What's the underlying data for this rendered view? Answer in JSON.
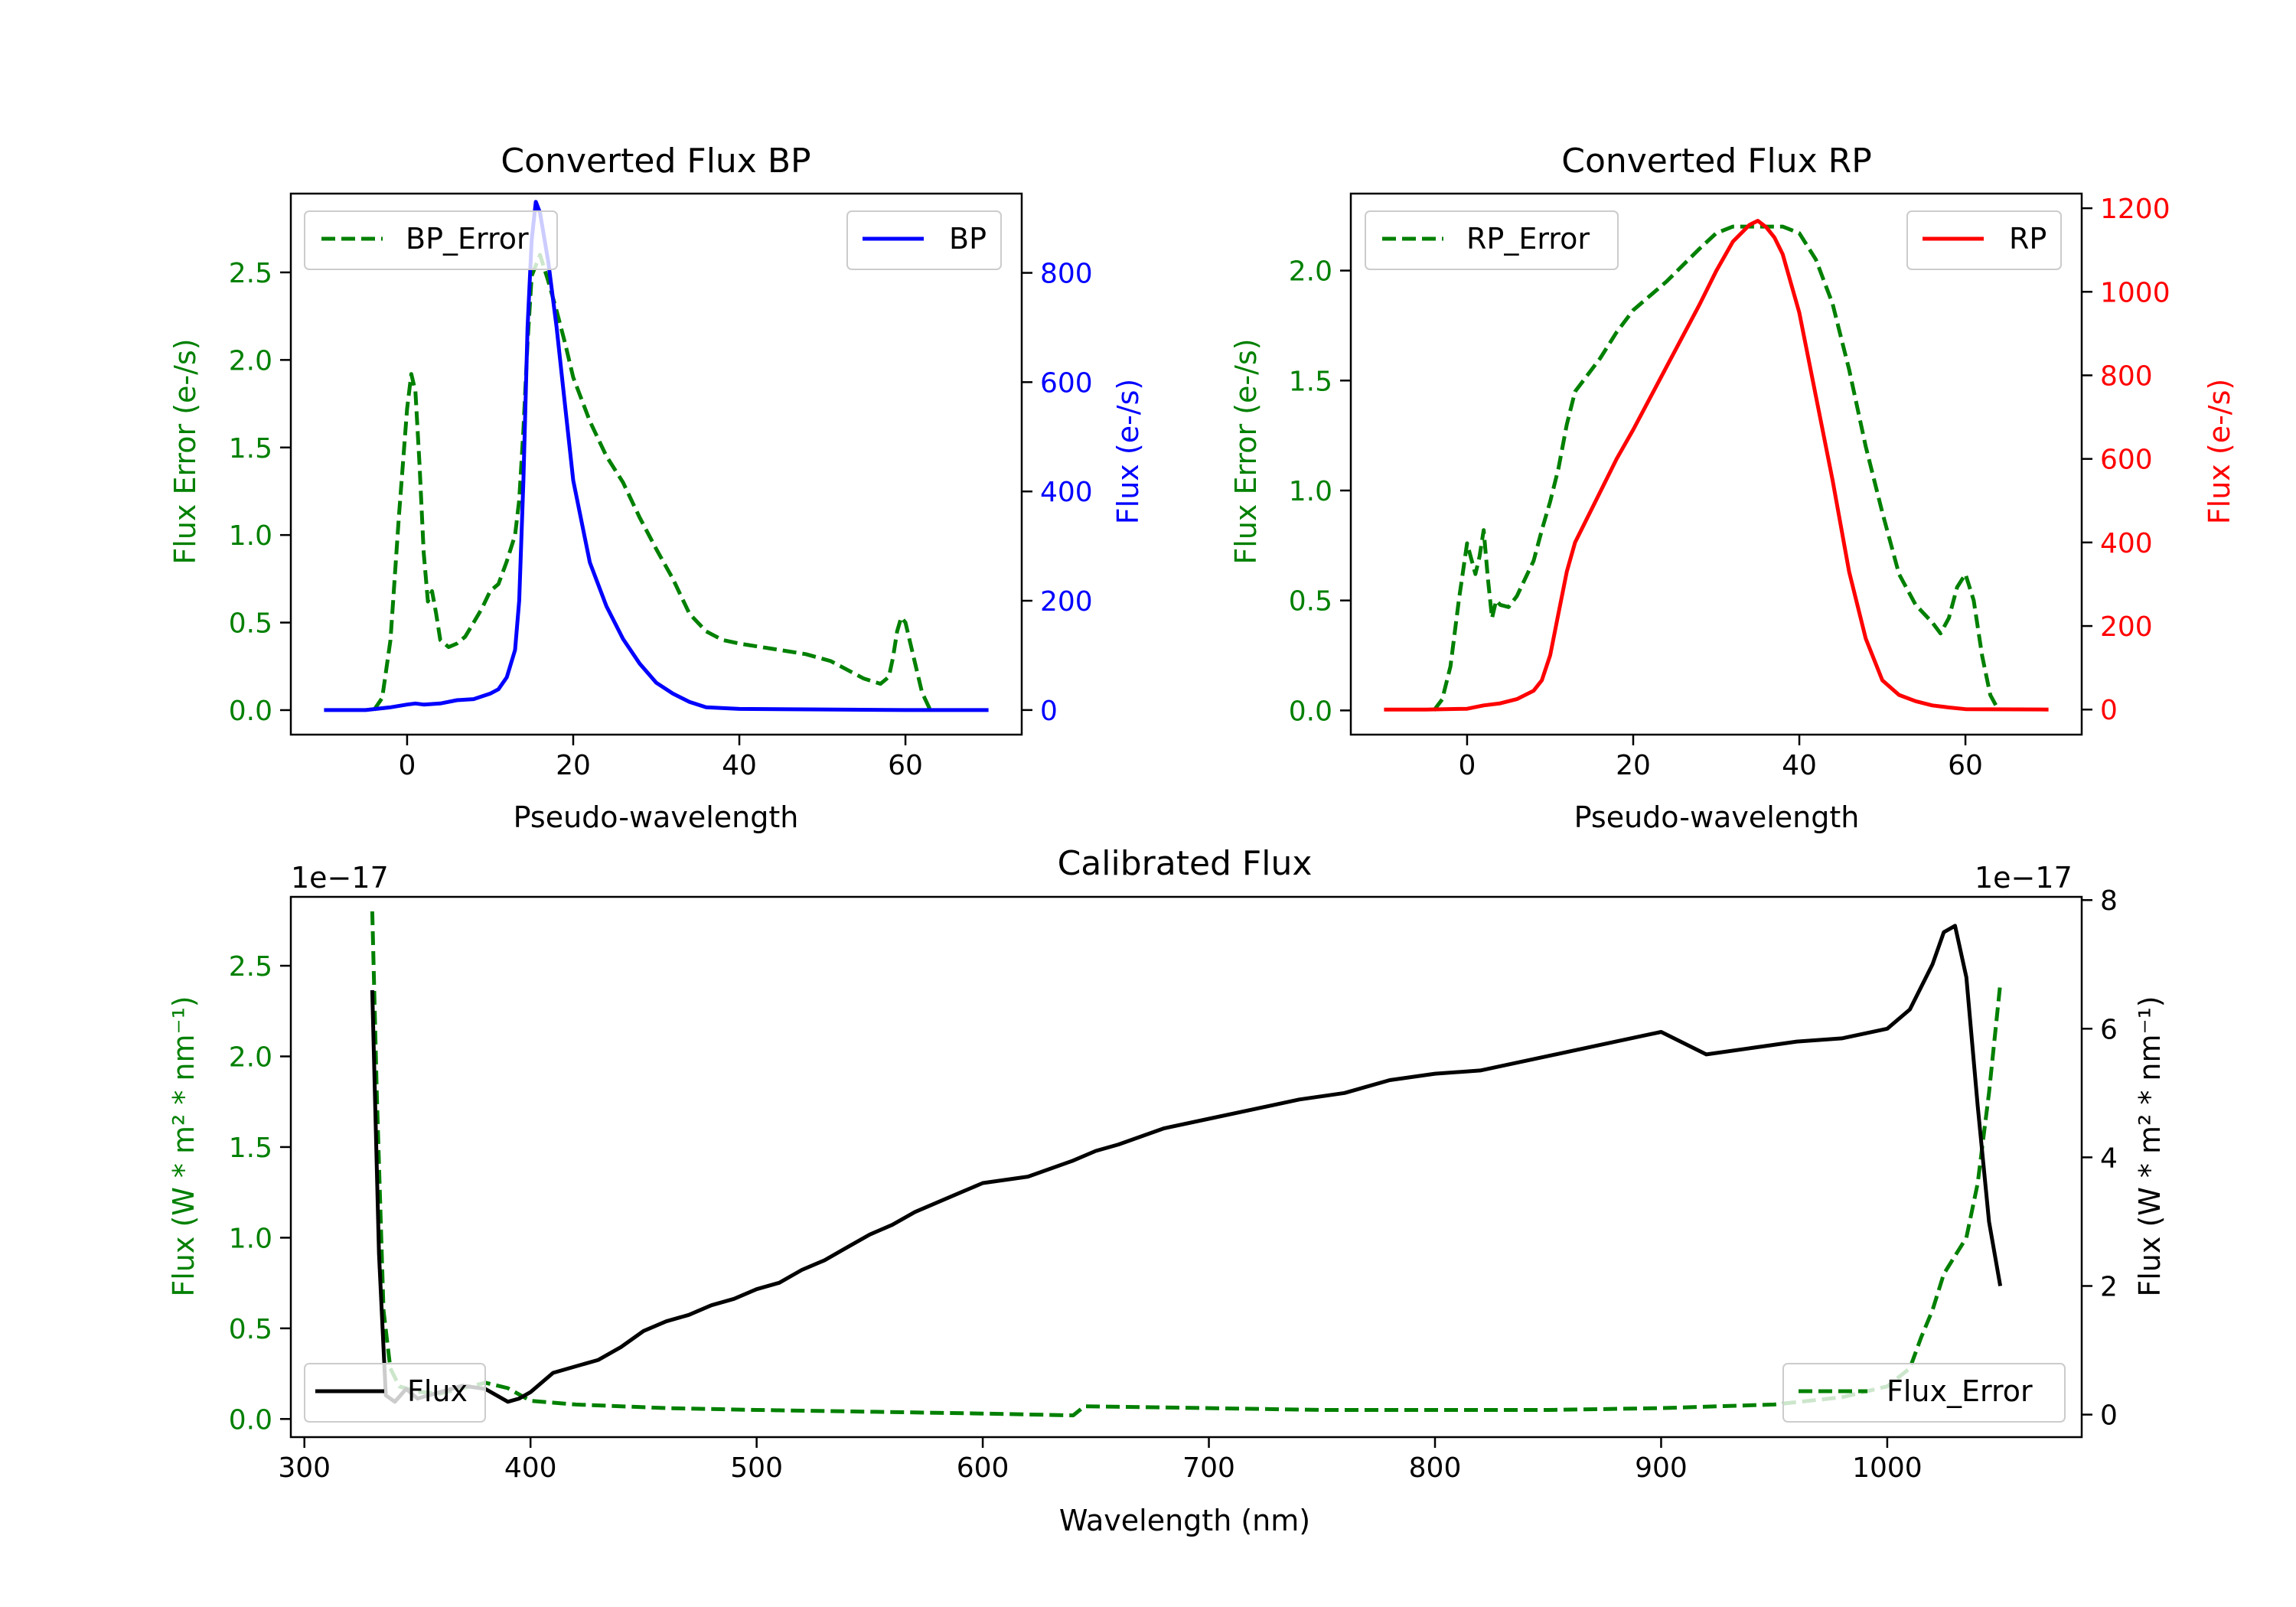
{
  "colors": {
    "error": "#008000",
    "bp": "#0000ff",
    "rp": "#ff0000",
    "flux": "#000000"
  },
  "chart_data": [
    {
      "id": "bp",
      "type": "line",
      "title": "Converted Flux BP",
      "xlabel": "Pseudo-wavelength",
      "ylabel_left": "Flux Error (e-/s)",
      "ylabel_right": "Flux (e-/s)",
      "xlim": [
        -14,
        74
      ],
      "ylim_left": [
        -0.14,
        2.95
      ],
      "ylim_right": [
        -45,
        945
      ],
      "xticks": [
        0,
        20,
        40,
        60
      ],
      "yticks_left": [
        0.0,
        0.5,
        1.0,
        1.5,
        2.0,
        2.5
      ],
      "yticks_right": [
        0,
        200,
        400,
        600,
        800
      ],
      "legend_left": "BP_Error",
      "legend_right": "BP",
      "error_series": {
        "name": "BP_Error",
        "x": [
          -4,
          -3,
          -2,
          -1,
          0,
          0.5,
          1,
          1.5,
          2,
          2.5,
          3,
          3.5,
          4,
          5,
          6,
          7,
          8,
          9,
          10,
          11,
          12,
          13,
          13.5,
          14,
          14.5,
          15,
          16,
          17,
          18,
          19,
          20,
          22,
          24,
          26,
          28,
          30,
          32,
          34,
          36,
          38,
          40,
          44,
          48,
          51,
          53,
          55,
          57,
          58,
          58.5,
          59,
          59.5,
          60,
          61,
          62,
          63
        ],
        "y": [
          0.0,
          0.07,
          0.4,
          1.1,
          1.72,
          1.92,
          1.82,
          1.4,
          0.9,
          0.62,
          0.68,
          0.55,
          0.4,
          0.36,
          0.38,
          0.42,
          0.5,
          0.58,
          0.68,
          0.72,
          0.85,
          1.0,
          1.2,
          1.6,
          2.1,
          2.48,
          2.6,
          2.45,
          2.28,
          2.1,
          1.9,
          1.65,
          1.45,
          1.3,
          1.1,
          0.92,
          0.75,
          0.55,
          0.45,
          0.4,
          0.38,
          0.35,
          0.32,
          0.28,
          0.23,
          0.18,
          0.15,
          0.19,
          0.3,
          0.45,
          0.53,
          0.5,
          0.3,
          0.1,
          0.0
        ]
      },
      "flux_series": {
        "name": "BP",
        "x": [
          -10,
          -5,
          -2,
          0,
          1,
          2,
          4,
          6,
          8,
          10,
          11,
          12,
          13,
          13.5,
          14,
          14.5,
          15,
          15.5,
          16,
          17,
          18,
          19,
          20,
          22,
          24,
          26,
          28,
          30,
          32,
          34,
          36,
          40,
          50,
          60,
          70
        ],
        "y": [
          0,
          0,
          5,
          10,
          12,
          10,
          12,
          18,
          20,
          30,
          38,
          60,
          110,
          200,
          420,
          700,
          860,
          930,
          910,
          820,
          700,
          560,
          420,
          270,
          190,
          130,
          85,
          50,
          30,
          15,
          5,
          2,
          1,
          0,
          0
        ]
      }
    },
    {
      "id": "rp",
      "type": "line",
      "title": "Converted Flux RP",
      "xlabel": "Pseudo-wavelength",
      "ylabel_left": "Flux Error (e-/s)",
      "ylabel_right": "Flux (e-/s)",
      "xlim": [
        -14,
        74
      ],
      "ylim_left": [
        -0.11,
        2.35
      ],
      "ylim_right": [
        -60,
        1235
      ],
      "xticks": [
        0,
        20,
        40,
        60
      ],
      "yticks_left": [
        0.0,
        0.5,
        1.0,
        1.5,
        2.0
      ],
      "yticks_right": [
        0,
        200,
        400,
        600,
        800,
        1000,
        1200
      ],
      "legend_left": "RP_Error",
      "legend_right": "RP",
      "error_series": {
        "name": "RP_Error",
        "x": [
          -4,
          -3,
          -2,
          -1,
          0,
          1,
          1.5,
          2,
          2.5,
          3,
          3.5,
          4,
          5,
          6,
          7,
          8,
          9,
          10,
          11,
          12,
          13,
          14,
          16,
          18,
          20,
          24,
          28,
          30,
          32,
          34,
          36,
          38,
          40,
          42,
          44,
          46,
          48,
          50,
          52,
          54,
          56,
          57,
          58,
          59,
          60,
          61,
          62,
          63,
          64
        ],
        "y": [
          0.0,
          0.05,
          0.2,
          0.5,
          0.76,
          0.62,
          0.7,
          0.82,
          0.6,
          0.42,
          0.5,
          0.48,
          0.47,
          0.52,
          0.6,
          0.68,
          0.82,
          0.95,
          1.1,
          1.3,
          1.45,
          1.5,
          1.6,
          1.72,
          1.82,
          1.95,
          2.1,
          2.17,
          2.2,
          2.2,
          2.2,
          2.2,
          2.17,
          2.05,
          1.85,
          1.55,
          1.2,
          0.9,
          0.62,
          0.48,
          0.4,
          0.35,
          0.42,
          0.56,
          0.62,
          0.5,
          0.25,
          0.07,
          0.0
        ]
      },
      "flux_series": {
        "name": "RP",
        "x": [
          -10,
          -5,
          0,
          2,
          4,
          6,
          8,
          9,
          10,
          11,
          12,
          13,
          14,
          16,
          18,
          20,
          24,
          28,
          30,
          32,
          34,
          35,
          36,
          37,
          38,
          40,
          42,
          44,
          46,
          48,
          50,
          52,
          54,
          56,
          58,
          60,
          70
        ],
        "y": [
          0,
          0,
          2,
          10,
          15,
          25,
          45,
          70,
          130,
          230,
          330,
          400,
          440,
          520,
          600,
          670,
          820,
          970,
          1050,
          1120,
          1160,
          1170,
          1155,
          1130,
          1090,
          950,
          750,
          550,
          330,
          170,
          70,
          35,
          20,
          10,
          5,
          1,
          0
        ]
      }
    },
    {
      "id": "cal",
      "type": "line",
      "title": "Calibrated Flux",
      "xlabel": "Wavelength (nm)",
      "ylabel_left": "Flux (W * m² * nm⁻¹)",
      "ylabel_right": "Flux (W * m² * nm⁻¹)",
      "offset_left": "1e−17",
      "offset_right": "1e−17",
      "xlim": [
        294,
        1086
      ],
      "ylim_left": [
        -0.1,
        2.88
      ],
      "ylim_right": [
        -0.35,
        8.05
      ],
      "xticks": [
        300,
        400,
        500,
        600,
        700,
        800,
        900,
        1000
      ],
      "yticks_left": [
        0.0,
        0.5,
        1.0,
        1.5,
        2.0,
        2.5
      ],
      "yticks_right": [
        0,
        2,
        4,
        6,
        8
      ],
      "legend_left": "Flux",
      "legend_right": "Flux_Error",
      "error_series": {
        "name": "Flux_Error",
        "x": [
          330,
          332,
          335,
          338,
          342,
          350,
          360,
          370,
          380,
          390,
          400,
          420,
          440,
          460,
          500,
          550,
          600,
          640,
          645,
          700,
          750,
          800,
          850,
          900,
          950,
          980,
          1000,
          1010,
          1015,
          1020,
          1025,
          1030,
          1035,
          1040,
          1045,
          1050
        ],
        "y": [
          2.8,
          1.8,
          0.6,
          0.28,
          0.18,
          0.15,
          0.14,
          0.17,
          0.2,
          0.17,
          0.1,
          0.08,
          0.07,
          0.06,
          0.05,
          0.04,
          0.03,
          0.02,
          0.07,
          0.06,
          0.05,
          0.05,
          0.05,
          0.06,
          0.08,
          0.12,
          0.18,
          0.28,
          0.45,
          0.6,
          0.8,
          0.9,
          1.0,
          1.3,
          1.8,
          2.4
        ]
      },
      "flux_series": {
        "name": "Flux",
        "x": [
          330,
          333,
          336,
          340,
          345,
          350,
          360,
          370,
          380,
          385,
          390,
          395,
          400,
          410,
          420,
          430,
          440,
          450,
          460,
          470,
          480,
          490,
          500,
          510,
          520,
          530,
          540,
          550,
          560,
          570,
          580,
          590,
          600,
          620,
          640,
          650,
          660,
          680,
          700,
          720,
          740,
          760,
          780,
          800,
          820,
          840,
          860,
          880,
          900,
          920,
          940,
          960,
          980,
          1000,
          1010,
          1020,
          1025,
          1030,
          1035,
          1040,
          1045,
          1050
        ],
        "y": [
          6.6,
          2.5,
          0.3,
          0.2,
          0.4,
          0.25,
          0.35,
          0.45,
          0.4,
          0.3,
          0.2,
          0.25,
          0.35,
          0.65,
          0.75,
          0.85,
          1.05,
          1.3,
          1.45,
          1.55,
          1.7,
          1.8,
          1.95,
          2.05,
          2.25,
          2.4,
          2.6,
          2.8,
          2.95,
          3.15,
          3.3,
          3.45,
          3.6,
          3.7,
          3.95,
          4.1,
          4.2,
          4.45,
          4.6,
          4.75,
          4.9,
          5.0,
          5.2,
          5.3,
          5.35,
          5.5,
          5.65,
          5.8,
          5.95,
          5.6,
          5.7,
          5.8,
          5.85,
          6.0,
          6.3,
          7.0,
          7.5,
          7.6,
          6.8,
          4.8,
          3.0,
          2.0
        ]
      }
    }
  ]
}
